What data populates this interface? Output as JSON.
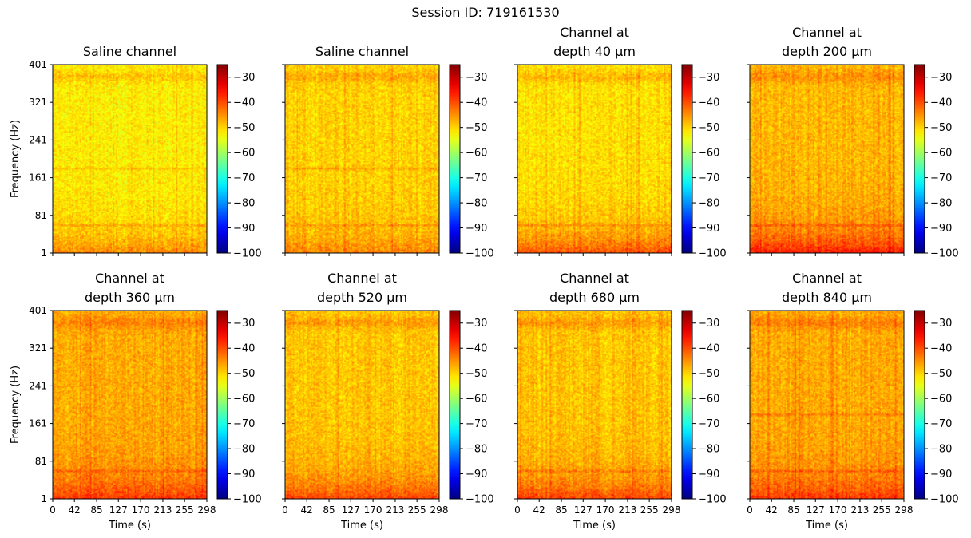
{
  "figure": {
    "suptitle": "Session ID: 719161530"
  },
  "colormap": {
    "name": "jet",
    "vmin": -100,
    "vmax": -25,
    "ticks": [
      -100,
      -90,
      -80,
      -70,
      -60,
      -50,
      -40,
      -30
    ],
    "tick_labels": [
      "−100",
      "−90",
      "−80",
      "−70",
      "−60",
      "−50",
      "−40",
      "−30"
    ]
  },
  "chart_data": [
    {
      "type": "heatmap",
      "title": "Saline channel",
      "title_lines": [
        "Saline channel"
      ],
      "xlabel": "",
      "ylabel": "Frequency (Hz)",
      "x_ticks": [
        0,
        42,
        85,
        127,
        170,
        213,
        255,
        298
      ],
      "x_tick_labels": [
        "",
        "",
        "",
        "",
        "",
        "",
        "",
        ""
      ],
      "y_ticks": [
        1,
        81,
        161,
        241,
        321,
        401
      ],
      "y_tick_labels": [
        "1",
        "81",
        "161",
        "241",
        "321",
        "401"
      ],
      "xlim": [
        0,
        298
      ],
      "ylim": [
        1,
        401
      ],
      "mean_power_db": -52,
      "low_freq_power_db": -44,
      "line_noise_hz": [
        60,
        180,
        375
      ]
    },
    {
      "type": "heatmap",
      "title": "Saline channel",
      "title_lines": [
        "Saline channel"
      ],
      "xlabel": "",
      "ylabel": "",
      "x_ticks": [
        0,
        42,
        85,
        127,
        170,
        213,
        255,
        298
      ],
      "x_tick_labels": [
        "",
        "",
        "",
        "",
        "",
        "",
        "",
        ""
      ],
      "y_ticks": [
        1,
        81,
        161,
        241,
        321,
        401
      ],
      "y_tick_labels": [
        "",
        "",
        "",
        "",
        "",
        ""
      ],
      "xlim": [
        0,
        298
      ],
      "ylim": [
        1,
        401
      ],
      "mean_power_db": -50,
      "low_freq_power_db": -44,
      "line_noise_hz": [
        60,
        180,
        375
      ]
    },
    {
      "type": "heatmap",
      "title": "Channel at depth 40 μm",
      "title_lines": [
        "Channel at",
        "depth 40 μm"
      ],
      "xlabel": "",
      "ylabel": "",
      "x_ticks": [
        0,
        42,
        85,
        127,
        170,
        213,
        255,
        298
      ],
      "x_tick_labels": [
        "",
        "",
        "",
        "",
        "",
        "",
        "",
        ""
      ],
      "y_ticks": [
        1,
        81,
        161,
        241,
        321,
        401
      ],
      "y_tick_labels": [
        "",
        "",
        "",
        "",
        "",
        ""
      ],
      "xlim": [
        0,
        298
      ],
      "ylim": [
        1,
        401
      ],
      "mean_power_db": -51,
      "low_freq_power_db": -40,
      "line_noise_hz": [
        60,
        375
      ]
    },
    {
      "type": "heatmap",
      "title": "Channel at depth 200 μm",
      "title_lines": [
        "Channel at",
        "depth 200 μm"
      ],
      "xlabel": "",
      "ylabel": "",
      "x_ticks": [
        0,
        42,
        85,
        127,
        170,
        213,
        255,
        298
      ],
      "x_tick_labels": [
        "",
        "",
        "",
        "",
        "",
        "",
        "",
        ""
      ],
      "y_ticks": [
        1,
        81,
        161,
        241,
        321,
        401
      ],
      "y_tick_labels": [
        "",
        "",
        "",
        "",
        "",
        ""
      ],
      "xlim": [
        0,
        298
      ],
      "ylim": [
        1,
        401
      ],
      "mean_power_db": -48,
      "low_freq_power_db": -36,
      "line_noise_hz": [
        60,
        375
      ]
    },
    {
      "type": "heatmap",
      "title": "Channel at depth 360 μm",
      "title_lines": [
        "Channel at",
        "depth 360 μm"
      ],
      "xlabel": "Time (s)",
      "ylabel": "Frequency (Hz)",
      "x_ticks": [
        0,
        42,
        85,
        127,
        170,
        213,
        255,
        298
      ],
      "x_tick_labels": [
        "0",
        "42",
        "85",
        "127",
        "170",
        "213",
        "255",
        "298"
      ],
      "y_ticks": [
        1,
        81,
        161,
        241,
        321,
        401
      ],
      "y_tick_labels": [
        "1",
        "81",
        "161",
        "241",
        "321",
        "401"
      ],
      "xlim": [
        0,
        298
      ],
      "ylim": [
        1,
        401
      ],
      "mean_power_db": -47,
      "low_freq_power_db": -38,
      "line_noise_hz": [
        60,
        375
      ]
    },
    {
      "type": "heatmap",
      "title": "Channel at depth 520 μm",
      "title_lines": [
        "Channel at",
        "depth 520 μm"
      ],
      "xlabel": "Time (s)",
      "ylabel": "",
      "x_ticks": [
        0,
        42,
        85,
        127,
        170,
        213,
        255,
        298
      ],
      "x_tick_labels": [
        "0",
        "42",
        "85",
        "127",
        "170",
        "213",
        "255",
        "298"
      ],
      "y_ticks": [
        1,
        81,
        161,
        241,
        321,
        401
      ],
      "y_tick_labels": [
        "",
        "",
        "",
        "",
        "",
        ""
      ],
      "xlim": [
        0,
        298
      ],
      "ylim": [
        1,
        401
      ],
      "mean_power_db": -49,
      "low_freq_power_db": -39,
      "line_noise_hz": [
        375
      ]
    },
    {
      "type": "heatmap",
      "title": "Channel at depth 680 μm",
      "title_lines": [
        "Channel at",
        "depth 680 μm"
      ],
      "xlabel": "Time (s)",
      "ylabel": "",
      "x_ticks": [
        0,
        42,
        85,
        127,
        170,
        213,
        255,
        298
      ],
      "x_tick_labels": [
        "0",
        "42",
        "85",
        "127",
        "170",
        "213",
        "255",
        "298"
      ],
      "y_ticks": [
        1,
        81,
        161,
        241,
        321,
        401
      ],
      "y_tick_labels": [
        "",
        "",
        "",
        "",
        "",
        ""
      ],
      "xlim": [
        0,
        298
      ],
      "ylim": [
        1,
        401
      ],
      "mean_power_db": -49,
      "low_freq_power_db": -39,
      "line_noise_hz": [
        60,
        375
      ]
    },
    {
      "type": "heatmap",
      "title": "Channel at depth 840 μm",
      "title_lines": [
        "Channel at",
        "depth 840 μm"
      ],
      "xlabel": "Time (s)",
      "ylabel": "",
      "x_ticks": [
        0,
        42,
        85,
        127,
        170,
        213,
        255,
        298
      ],
      "x_tick_labels": [
        "0",
        "42",
        "85",
        "127",
        "170",
        "213",
        "255",
        "298"
      ],
      "y_ticks": [
        1,
        81,
        161,
        241,
        321,
        401
      ],
      "y_tick_labels": [
        "",
        "",
        "",
        "",
        "",
        ""
      ],
      "xlim": [
        0,
        298
      ],
      "ylim": [
        1,
        401
      ],
      "mean_power_db": -47,
      "low_freq_power_db": -38,
      "line_noise_hz": [
        60,
        180,
        375
      ]
    }
  ]
}
